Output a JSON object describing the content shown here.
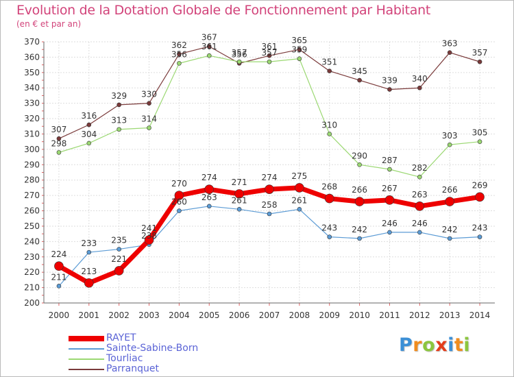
{
  "brand": {
    "letters": [
      {
        "char": "P",
        "color": "#3b8fd6"
      },
      {
        "char": "r",
        "color": "#f08c1e"
      },
      {
        "char": "o",
        "color": "#8cc63e"
      },
      {
        "char": "x",
        "color": "#e43d1b"
      },
      {
        "char": "i",
        "color": "#3b8fd6"
      },
      {
        "char": "t",
        "color": "#f08c1e"
      },
      {
        "char": "i",
        "color": "#8cc63e"
      }
    ]
  },
  "chart_data": {
    "type": "line",
    "title": "Evolution de la Dotation Globale de Fonctionnement par Habitant",
    "subtitle": "(en € et par an)",
    "xlabel": "",
    "ylabel": "",
    "x": [
      "2000",
      "2001",
      "2002",
      "2003",
      "2004",
      "2005",
      "2006",
      "2007",
      "2008",
      "2009",
      "2010",
      "2011",
      "2012",
      "2013",
      "2014"
    ],
    "ylim": [
      200,
      370
    ],
    "yticks": [
      200,
      210,
      220,
      230,
      240,
      250,
      260,
      270,
      280,
      290,
      300,
      310,
      320,
      330,
      340,
      350,
      360,
      370
    ],
    "grid": true,
    "legend_position": "bottom-left",
    "series": [
      {
        "name": "RAYET",
        "color": "#ee0000",
        "values": [
          224,
          213,
          221,
          241,
          270,
          274,
          271,
          274,
          275,
          268,
          266,
          267,
          263,
          266,
          269
        ]
      },
      {
        "name": "Sainte-Sabine-Born",
        "color": "#5b9bd5",
        "values": [
          211,
          233,
          235,
          238,
          260,
          263,
          261,
          258,
          261,
          243,
          242,
          246,
          246,
          242,
          243
        ]
      },
      {
        "name": "Tourliac",
        "color": "#9bd872",
        "values": [
          298,
          304,
          313,
          314,
          356,
          361,
          357,
          357,
          359,
          310,
          290,
          287,
          282,
          303,
          305
        ]
      },
      {
        "name": "Parranquet",
        "color": "#7a3a3a",
        "values": [
          307,
          316,
          329,
          330,
          362,
          367,
          356,
          361,
          365,
          351,
          345,
          339,
          340,
          363,
          357
        ]
      }
    ]
  }
}
